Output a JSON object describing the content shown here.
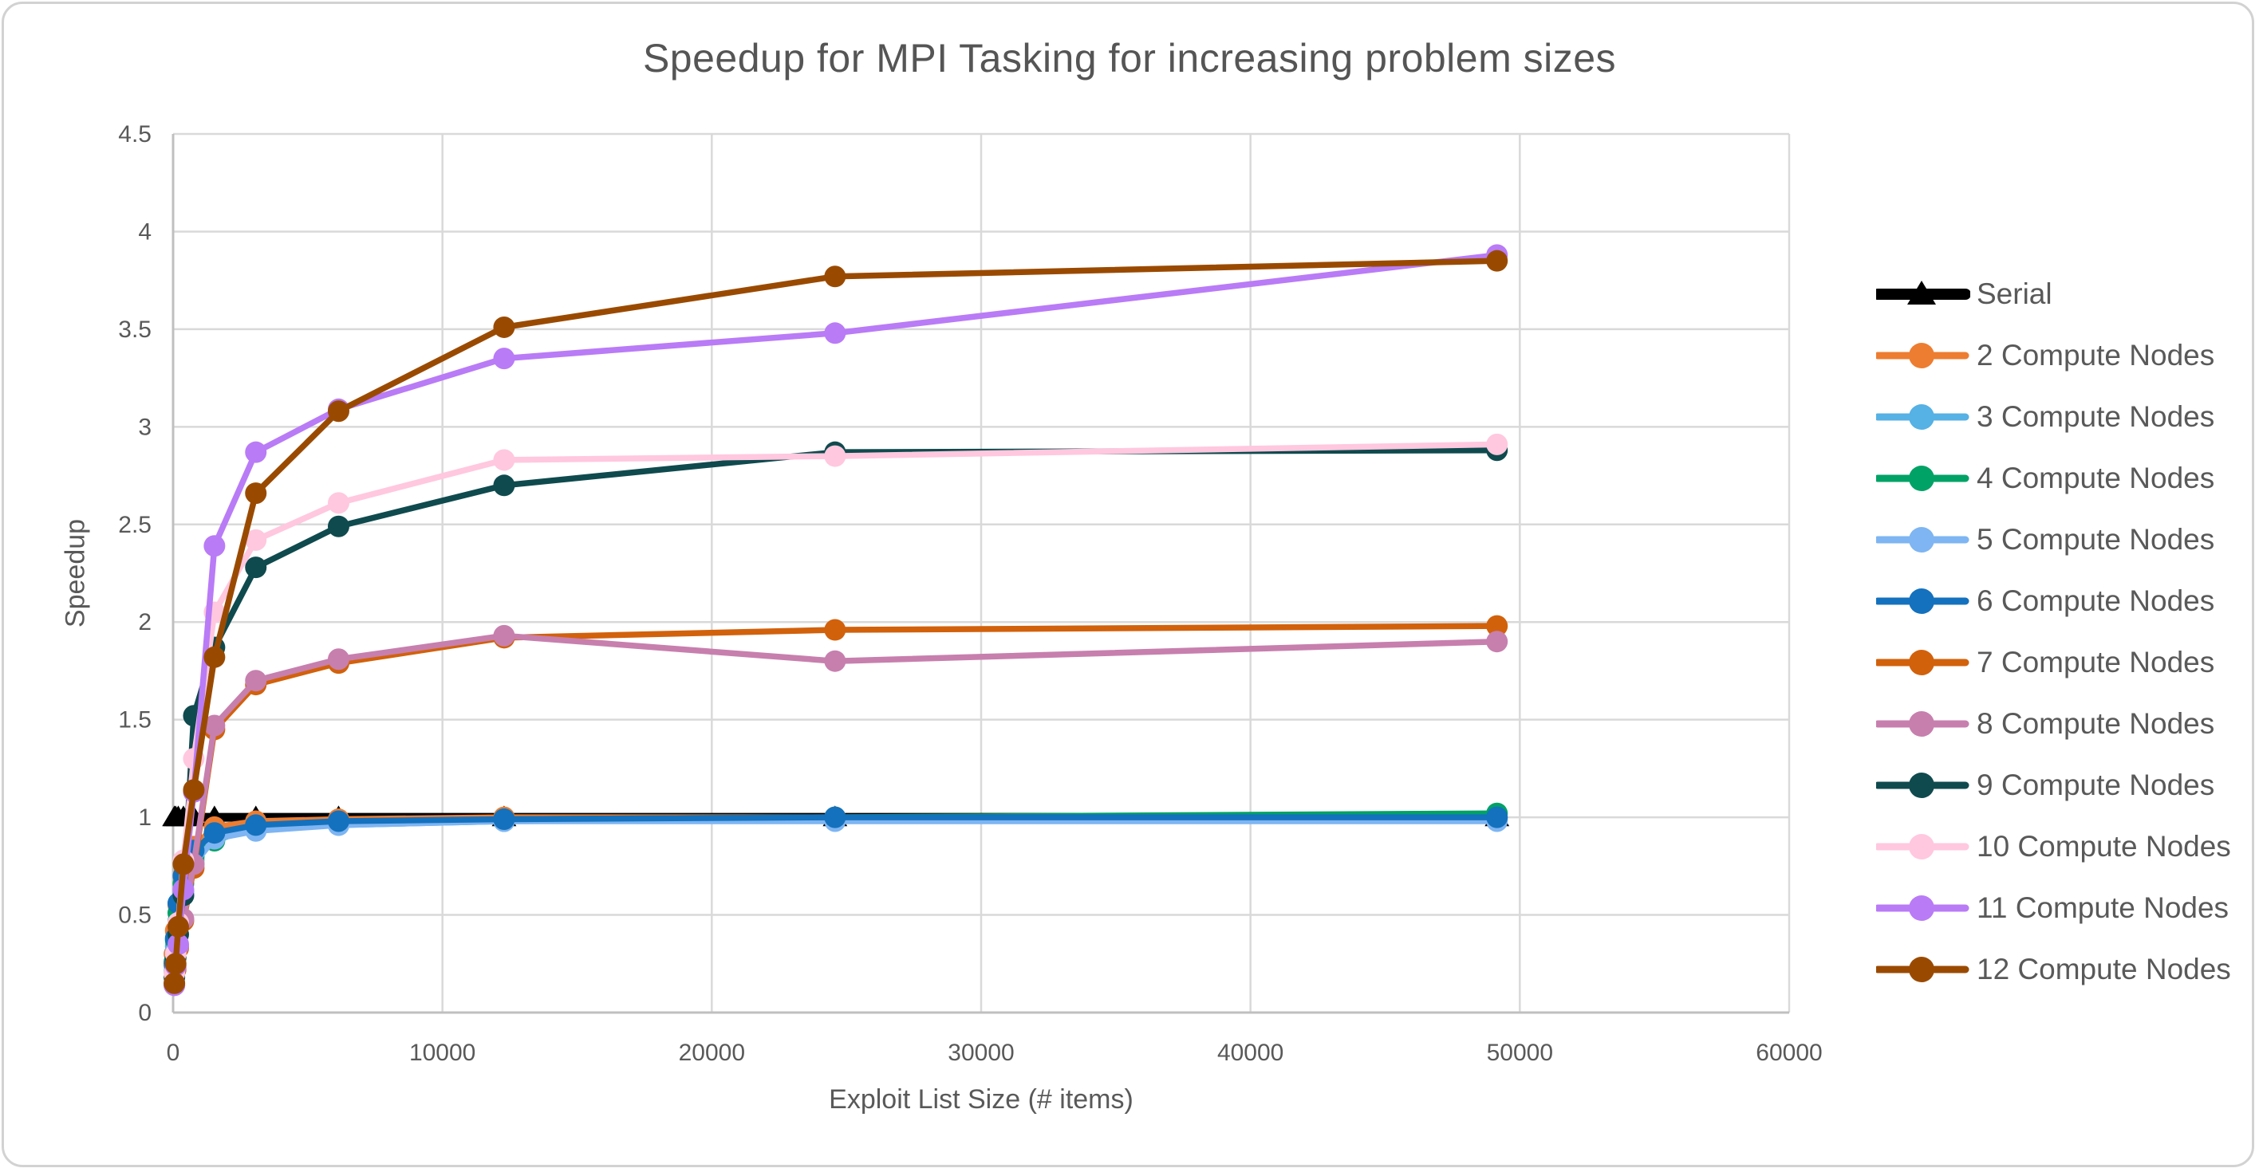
{
  "figure": {
    "title": "Speedup for MPI Tasking for increasing problem sizes"
  },
  "chart_data": {
    "type": "line",
    "title": "Speedup for MPI Tasking for increasing problem sizes",
    "xlabel": "Exploit List Size (# items)",
    "ylabel": "Speedup",
    "xlim": [
      0,
      60000
    ],
    "ylim": [
      0,
      4.5
    ],
    "x_ticks": [
      0,
      10000,
      20000,
      30000,
      40000,
      50000,
      60000
    ],
    "y_ticks": [
      0,
      0.5,
      1,
      1.5,
      2,
      2.5,
      3,
      3.5,
      4,
      4.5
    ],
    "grid": true,
    "legend_position": "right",
    "x": [
      48,
      96,
      192,
      384,
      768,
      1536,
      3072,
      6144,
      12288,
      24576,
      49152
    ],
    "series": [
      {
        "name": "Serial",
        "color": "#000000",
        "marker": "triangle",
        "line_width": 11,
        "values": [
          1.0,
          1.0,
          1.0,
          1.0,
          1.0,
          1.0,
          1.0,
          1.0,
          1.0,
          1.0,
          1.0
        ]
      },
      {
        "name": "2 Compute Nodes",
        "color": "#ED7D31",
        "marker": "circle",
        "line_width": 7.5,
        "values": [
          0.3,
          0.42,
          0.55,
          0.7,
          0.85,
          0.95,
          0.98,
          0.99,
          1.0,
          1.0,
          1.0
        ]
      },
      {
        "name": "3 Compute Nodes",
        "color": "#56B1E4",
        "marker": "circle",
        "line_width": 7.5,
        "values": [
          0.24,
          0.34,
          0.47,
          0.62,
          0.78,
          0.9,
          0.94,
          0.96,
          0.98,
          0.99,
          0.99
        ]
      },
      {
        "name": "4 Compute Nodes",
        "color": "#00A266",
        "marker": "circle",
        "line_width": 7.5,
        "values": [
          0.26,
          0.37,
          0.51,
          0.66,
          0.8,
          0.88,
          0.95,
          0.97,
          0.99,
          1.0,
          1.02
        ]
      },
      {
        "name": "5 Compute Nodes",
        "color": "#7EB5F2",
        "marker": "circle",
        "line_width": 7.5,
        "values": [
          0.21,
          0.31,
          0.44,
          0.6,
          0.76,
          0.89,
          0.93,
          0.96,
          0.98,
          0.98,
          0.98
        ]
      },
      {
        "name": "6 Compute Nodes",
        "color": "#1471BE",
        "marker": "circle",
        "line_width": 7.5,
        "values": [
          0.25,
          0.38,
          0.56,
          0.7,
          0.83,
          0.92,
          0.96,
          0.98,
          0.99,
          1.0,
          1.0
        ]
      },
      {
        "name": "7 Compute Nodes",
        "color": "#D2610C",
        "marker": "circle",
        "line_width": 7.5,
        "values": [
          0.14,
          0.22,
          0.33,
          0.47,
          0.74,
          1.45,
          1.68,
          1.79,
          1.92,
          1.96,
          1.98
        ]
      },
      {
        "name": "8 Compute Nodes",
        "color": "#C77FAE",
        "marker": "circle",
        "line_width": 7.5,
        "values": [
          0.15,
          0.23,
          0.34,
          0.48,
          0.76,
          1.47,
          1.7,
          1.81,
          1.93,
          1.8,
          1.9
        ]
      },
      {
        "name": "9 Compute Nodes",
        "color": "#0F4A4E",
        "marker": "circle",
        "line_width": 7.5,
        "values": [
          0.18,
          0.28,
          0.4,
          0.6,
          1.52,
          1.87,
          2.28,
          2.49,
          2.7,
          2.87,
          2.88
        ]
      },
      {
        "name": "10 Compute Nodes",
        "color": "#FFC8DE",
        "marker": "circle",
        "line_width": 7.5,
        "values": [
          0.2,
          0.3,
          0.46,
          0.78,
          1.3,
          2.05,
          2.42,
          2.61,
          2.83,
          2.85,
          2.91
        ]
      },
      {
        "name": "11 Compute Nodes",
        "color": "#B97BF6",
        "marker": "circle",
        "line_width": 7.5,
        "values": [
          0.14,
          0.24,
          0.35,
          0.63,
          1.13,
          2.39,
          2.87,
          3.09,
          3.35,
          3.48,
          3.88
        ]
      },
      {
        "name": "12 Compute Nodes",
        "color": "#9A4A00",
        "marker": "circle",
        "line_width": 7.5,
        "values": [
          0.15,
          0.25,
          0.44,
          0.76,
          1.14,
          1.82,
          2.66,
          3.08,
          3.51,
          3.77,
          3.85
        ]
      }
    ]
  },
  "colors": {
    "background": "#FFFFFF",
    "figure_border": "#D2D2D2",
    "grid_line": "#D9D9D9",
    "axis_line": "#BFBFBF",
    "tick_text": "#595959",
    "title_text": "#555555"
  }
}
